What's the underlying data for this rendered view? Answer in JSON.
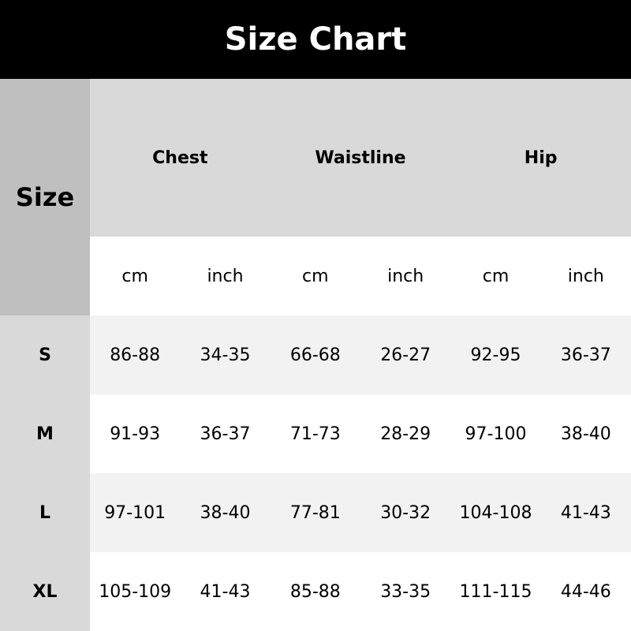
{
  "title": "Size Chart",
  "size_header": "Size",
  "groups": [
    "Chest",
    "Waistline",
    "Hip"
  ],
  "units": [
    "cm",
    "inch",
    "cm",
    "inch",
    "cm",
    "inch"
  ],
  "rows": [
    {
      "size": "S",
      "values": [
        "86-88",
        "34-35",
        "66-68",
        "26-27",
        "92-95",
        "36-37"
      ]
    },
    {
      "size": "M",
      "values": [
        "91-93",
        "36-37",
        "71-73",
        "28-29",
        "97-100",
        "38-40"
      ]
    },
    {
      "size": "L",
      "values": [
        "97-101",
        "38-40",
        "77-81",
        "30-32",
        "104-108",
        "41-43"
      ]
    },
    {
      "size": "XL",
      "values": [
        "105-109",
        "41-43",
        "85-88",
        "33-35",
        "111-115",
        "44-46"
      ]
    }
  ],
  "colors": {
    "title_bg": "#000000",
    "size_header_bg": "#bfbfbf",
    "size_col_bg": "#d9d9d9",
    "group_header_bg": "#d9d9d9",
    "stripe_bg": "#f2f2f2"
  }
}
